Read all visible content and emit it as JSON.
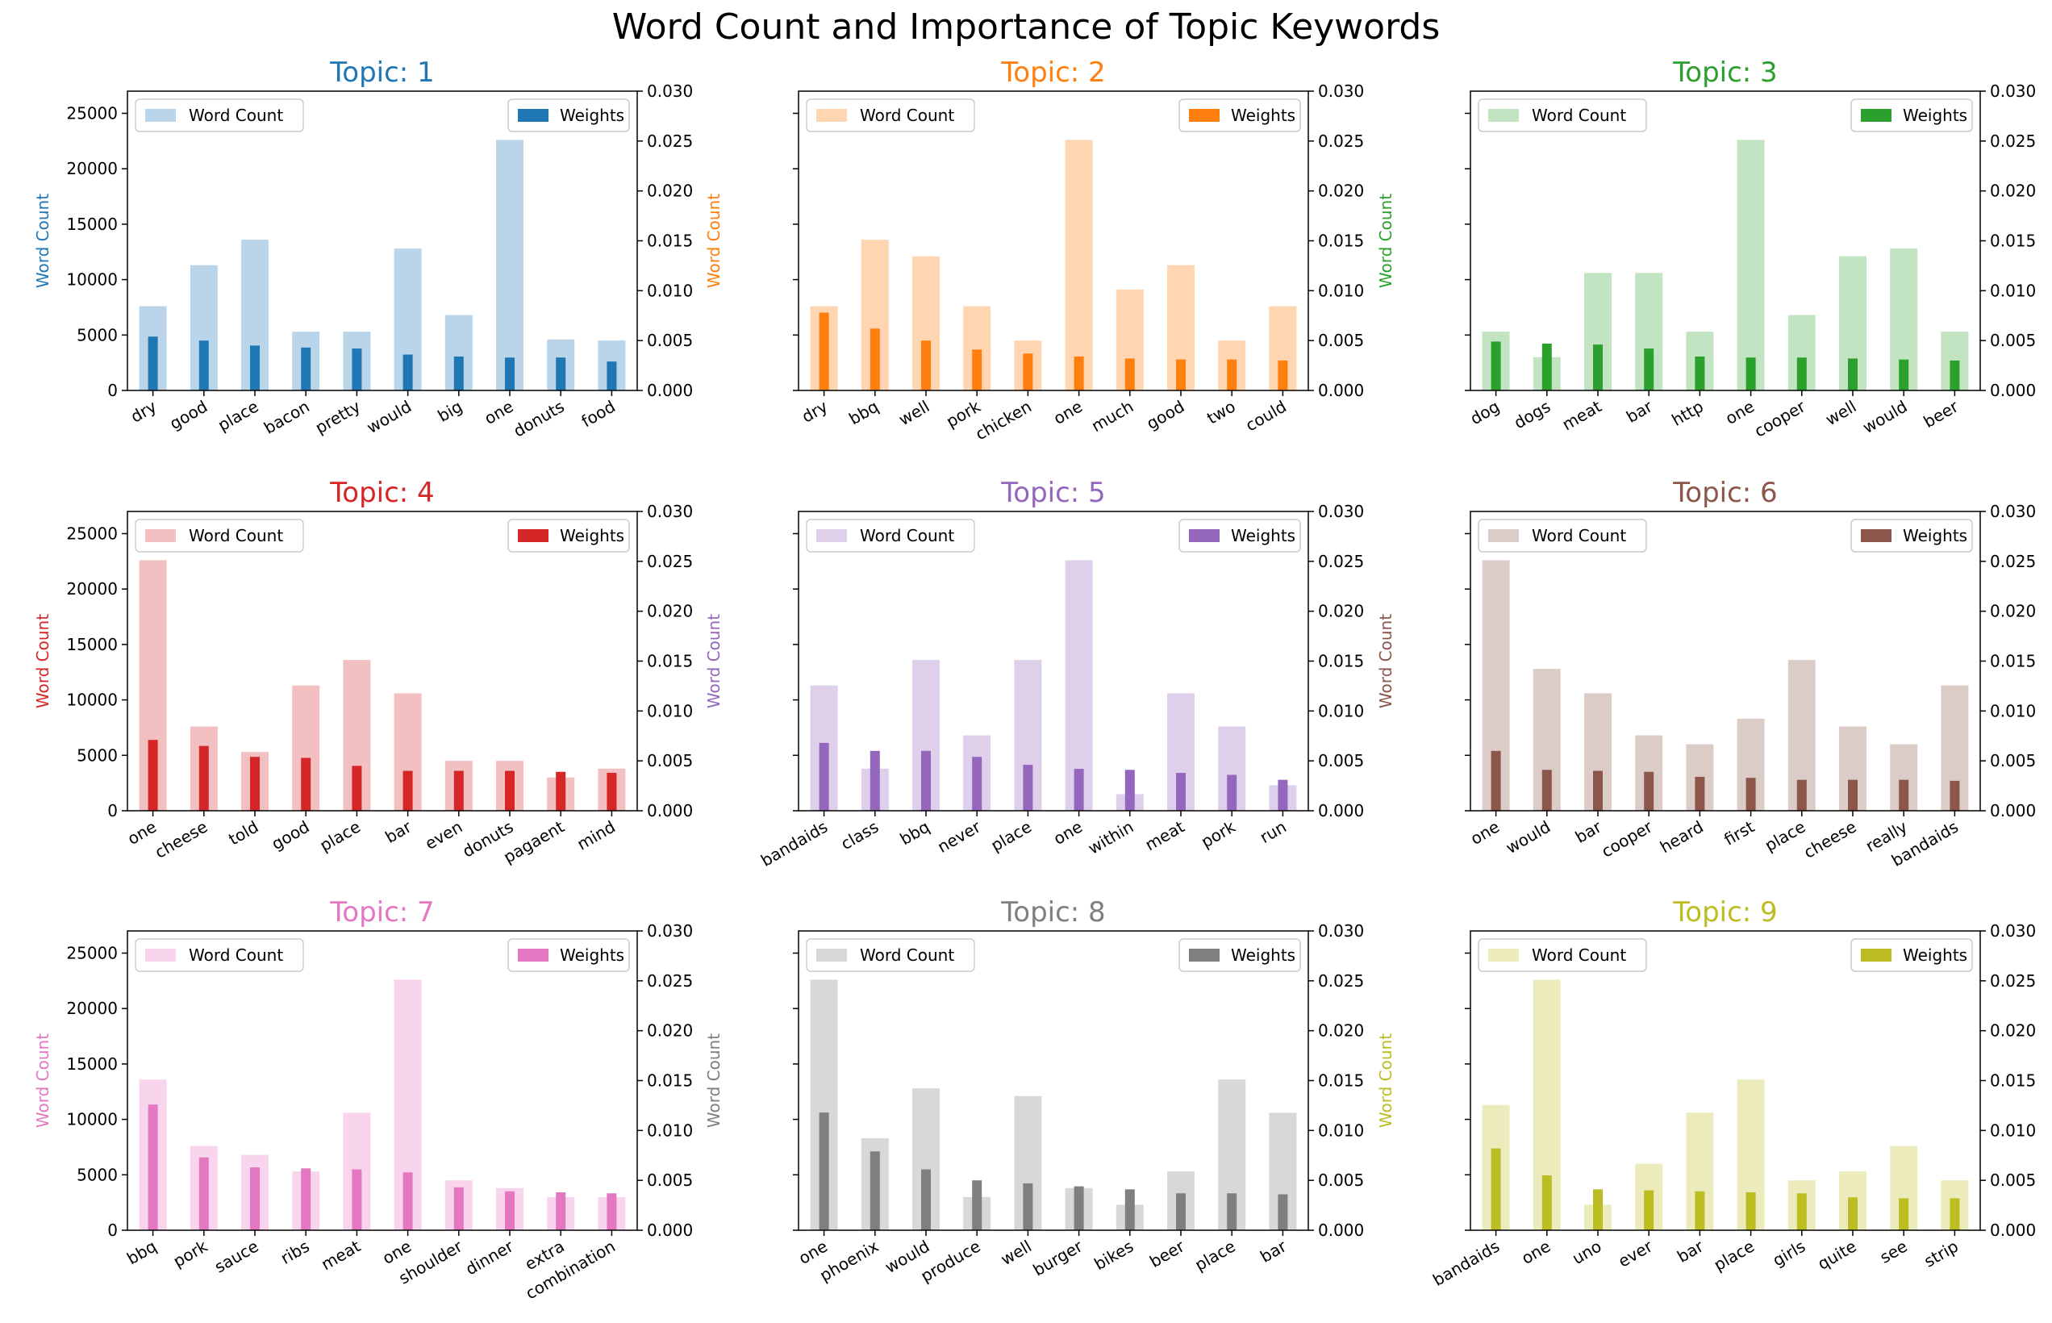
{
  "figure_title": "Word Count and Importance of Topic Keywords",
  "legend_labels": {
    "count": "Word Count",
    "weight": "Weights"
  },
  "y_left_label": "Word Count",
  "y_left_ticks": [
    0,
    5000,
    10000,
    15000,
    20000,
    25000
  ],
  "y_right_ticks": [
    "0.000",
    "0.005",
    "0.010",
    "0.015",
    "0.020",
    "0.025",
    "0.030"
  ],
  "chart_data": [
    {
      "type": "bar",
      "title": "Topic: 1",
      "color": "#1f77b4",
      "light_color": "#bad5ea",
      "categories": [
        "dry",
        "good",
        "place",
        "bacon",
        "pretty",
        "would",
        "big",
        "one",
        "donuts",
        "food"
      ],
      "word_count": [
        7600,
        11300,
        13600,
        5300,
        5300,
        12800,
        6800,
        22600,
        4600,
        4500
      ],
      "weights": [
        0.0054,
        0.005,
        0.0045,
        0.0043,
        0.0042,
        0.0036,
        0.0034,
        0.0033,
        0.0033,
        0.0029
      ],
      "ylabel": "Word Count",
      "ylim": [
        0,
        27000
      ],
      "y2lim": [
        0,
        0.03
      ],
      "show_yticks": true
    },
    {
      "type": "bar",
      "title": "Topic: 2",
      "color": "#ff7f0e",
      "light_color": "#ffd6b1",
      "categories": [
        "dry",
        "bbq",
        "well",
        "pork",
        "chicken",
        "one",
        "much",
        "good",
        "two",
        "could"
      ],
      "word_count": [
        7600,
        13600,
        12100,
        7600,
        4500,
        22600,
        9100,
        11300,
        4500,
        7600
      ],
      "weights": [
        0.0078,
        0.0062,
        0.005,
        0.0041,
        0.0037,
        0.0034,
        0.0032,
        0.0031,
        0.0031,
        0.003
      ],
      "ylabel": "Word Count",
      "ylim": [
        0,
        27000
      ],
      "y2lim": [
        0,
        0.03
      ],
      "show_yticks": false
    },
    {
      "type": "bar",
      "title": "Topic: 3",
      "color": "#2ca02c",
      "light_color": "#c2e4c2",
      "categories": [
        "dog",
        "dogs",
        "meat",
        "bar",
        "http",
        "one",
        "cooper",
        "well",
        "would",
        "beer"
      ],
      "word_count": [
        5300,
        3000,
        10600,
        10600,
        5300,
        22600,
        6800,
        12100,
        12800,
        5300
      ],
      "weights": [
        0.0049,
        0.0047,
        0.0046,
        0.0042,
        0.0034,
        0.0033,
        0.0033,
        0.0032,
        0.0031,
        0.003
      ],
      "ylabel": "Word Count",
      "ylim": [
        0,
        27000
      ],
      "y2lim": [
        0,
        0.03
      ],
      "show_yticks": false
    },
    {
      "type": "bar",
      "title": "Topic: 4",
      "color": "#d62728",
      "light_color": "#f2c0c0",
      "categories": [
        "one",
        "cheese",
        "told",
        "good",
        "place",
        "bar",
        "even",
        "donuts",
        "pagaent",
        "mind"
      ],
      "word_count": [
        22600,
        7600,
        5300,
        11300,
        13600,
        10600,
        4500,
        4500,
        3000,
        3800
      ],
      "weights": [
        0.0071,
        0.0065,
        0.0054,
        0.0053,
        0.0045,
        0.004,
        0.004,
        0.004,
        0.0039,
        0.0038
      ],
      "ylabel": "Word Count",
      "ylim": [
        0,
        27000
      ],
      "y2lim": [
        0,
        0.03
      ],
      "show_yticks": true
    },
    {
      "type": "bar",
      "title": "Topic: 5",
      "color": "#9467bd",
      "light_color": "#decfeb",
      "categories": [
        "bandaids",
        "class",
        "bbq",
        "never",
        "place",
        "one",
        "within",
        "meat",
        "pork",
        "run"
      ],
      "word_count": [
        11300,
        3800,
        13600,
        6800,
        13600,
        22600,
        1500,
        10600,
        7600,
        2300
      ],
      "weights": [
        0.0068,
        0.006,
        0.006,
        0.0054,
        0.0046,
        0.0042,
        0.0041,
        0.0038,
        0.0036,
        0.0031
      ],
      "ylabel": "Word Count",
      "ylim": [
        0,
        27000
      ],
      "y2lim": [
        0,
        0.03
      ],
      "show_yticks": false
    },
    {
      "type": "bar",
      "title": "Topic: 6",
      "color": "#8c564b",
      "light_color": "#dcccc8",
      "categories": [
        "one",
        "would",
        "bar",
        "cooper",
        "heard",
        "first",
        "place",
        "cheese",
        "really",
        "bandaids"
      ],
      "word_count": [
        22600,
        12800,
        10600,
        6800,
        6000,
        8300,
        13600,
        7600,
        6000,
        11300
      ],
      "weights": [
        0.006,
        0.0041,
        0.004,
        0.0039,
        0.0034,
        0.0033,
        0.0031,
        0.0031,
        0.0031,
        0.003
      ],
      "ylabel": "Word Count",
      "ylim": [
        0,
        27000
      ],
      "y2lim": [
        0,
        0.03
      ],
      "show_yticks": false
    },
    {
      "type": "bar",
      "title": "Topic: 7",
      "color": "#e377c2",
      "light_color": "#f8d5ed",
      "categories": [
        "bbq",
        "pork",
        "sauce",
        "ribs",
        "meat",
        "one",
        "shoulder",
        "dinner",
        "extra",
        "combination"
      ],
      "word_count": [
        13600,
        7600,
        6800,
        5300,
        10600,
        22600,
        4500,
        3800,
        3000,
        3000
      ],
      "weights": [
        0.0126,
        0.0073,
        0.0063,
        0.0062,
        0.0061,
        0.0058,
        0.0043,
        0.0039,
        0.0038,
        0.0037
      ],
      "ylabel": "Word Count",
      "ylim": [
        0,
        27000
      ],
      "y2lim": [
        0,
        0.03
      ],
      "show_yticks": true
    },
    {
      "type": "bar",
      "title": "Topic: 8",
      "color": "#7f7f7f",
      "light_color": "#d8d8d8",
      "categories": [
        "one",
        "phoenix",
        "would",
        "produce",
        "well",
        "burger",
        "bikes",
        "beer",
        "place",
        "bar"
      ],
      "word_count": [
        22600,
        8300,
        12800,
        3000,
        12100,
        3800,
        2300,
        5300,
        13600,
        10600
      ],
      "weights": [
        0.0118,
        0.0079,
        0.0061,
        0.005,
        0.0047,
        0.0044,
        0.0041,
        0.0037,
        0.0037,
        0.0036
      ],
      "ylabel": "Word Count",
      "ylim": [
        0,
        27000
      ],
      "y2lim": [
        0,
        0.03
      ],
      "show_yticks": false
    },
    {
      "type": "bar",
      "title": "Topic: 9",
      "color": "#bcbd22",
      "light_color": "#ebebbc",
      "categories": [
        "bandaids",
        "one",
        "uno",
        "ever",
        "bar",
        "place",
        "girls",
        "quite",
        "see",
        "strip"
      ],
      "word_count": [
        11300,
        22600,
        2300,
        6000,
        10600,
        13600,
        4500,
        5300,
        7600,
        4500
      ],
      "weights": [
        0.0082,
        0.0055,
        0.0041,
        0.004,
        0.0039,
        0.0038,
        0.0037,
        0.0033,
        0.0032,
        0.0032
      ],
      "ylabel": "Word Count",
      "ylim": [
        0,
        27000
      ],
      "y2lim": [
        0,
        0.03
      ],
      "show_yticks": false
    }
  ]
}
